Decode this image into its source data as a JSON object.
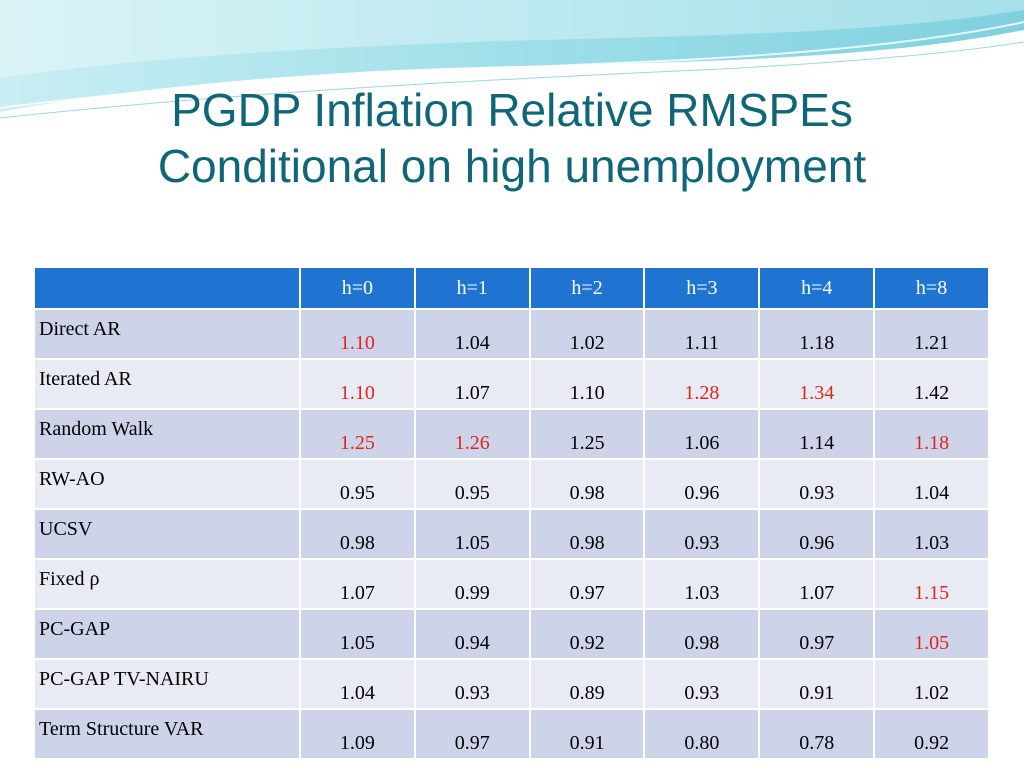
{
  "title": {
    "line1": "PGDP Inflation Relative RMSPEs",
    "line2": "Conditional on high unemployment"
  },
  "colors": {
    "title": "#0f6678",
    "header_bg": "#1f73d1",
    "row_odd": "#cdd4ea",
    "row_even": "#e8ebf4",
    "highlight": "#e3241b"
  },
  "table": {
    "corner": "",
    "headers": [
      "h=0",
      "h=1",
      "h=2",
      "h=3",
      "h=4",
      "h=8"
    ],
    "rows": [
      {
        "label": "Direct AR",
        "values": [
          "1.10",
          "1.04",
          "1.02",
          "1.11",
          "1.18",
          "1.21"
        ],
        "highlight": [
          true,
          false,
          false,
          false,
          false,
          false
        ]
      },
      {
        "label": "Iterated AR",
        "values": [
          "1.10",
          "1.07",
          "1.10",
          "1.28",
          "1.34",
          "1.42"
        ],
        "highlight": [
          true,
          false,
          false,
          true,
          true,
          false
        ]
      },
      {
        "label": "Random Walk",
        "values": [
          "1.25",
          "1.26",
          "1.25",
          "1.06",
          "1.14",
          "1.18"
        ],
        "highlight": [
          true,
          true,
          false,
          false,
          false,
          true
        ]
      },
      {
        "label": "RW-AO",
        "values": [
          "0.95",
          "0.95",
          "0.98",
          "0.96",
          "0.93",
          "1.04"
        ],
        "highlight": [
          false,
          false,
          false,
          false,
          false,
          false
        ]
      },
      {
        "label": "UCSV",
        "values": [
          "0.98",
          "1.05",
          "0.98",
          "0.93",
          "0.96",
          "1.03"
        ],
        "highlight": [
          false,
          false,
          false,
          false,
          false,
          false
        ]
      },
      {
        "label": "Fixed ρ",
        "values": [
          "1.07",
          "0.99",
          "0.97",
          "1.03",
          "1.07",
          "1.15"
        ],
        "highlight": [
          false,
          false,
          false,
          false,
          false,
          true
        ]
      },
      {
        "label": "PC-GAP",
        "values": [
          "1.05",
          "0.94",
          "0.92",
          "0.98",
          "0.97",
          "1.05"
        ],
        "highlight": [
          false,
          false,
          false,
          false,
          false,
          true
        ]
      },
      {
        "label": "PC-GAP TV-NAIRU",
        "values": [
          "1.04",
          "0.93",
          "0.89",
          "0.93",
          "0.91",
          "1.02"
        ],
        "highlight": [
          false,
          false,
          false,
          false,
          false,
          false
        ]
      },
      {
        "label": "Term Structure VAR",
        "values": [
          "1.09",
          "0.97",
          "0.91",
          "0.80",
          "0.78",
          "0.92"
        ],
        "highlight": [
          false,
          false,
          false,
          false,
          false,
          false
        ]
      }
    ]
  }
}
